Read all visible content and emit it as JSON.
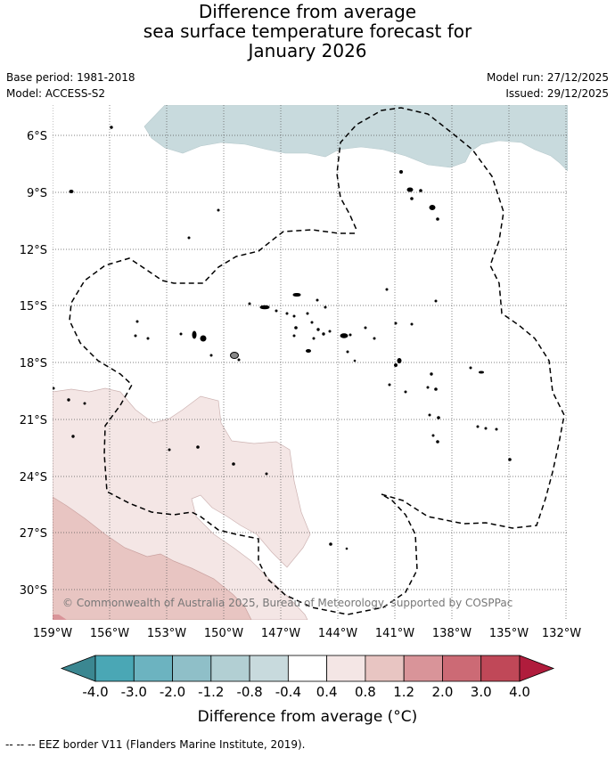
{
  "title": {
    "line1": "Difference from average",
    "line2": "sea surface temperature forecast for",
    "line3": "January 2026"
  },
  "meta": {
    "base_period": "Base period: 1981-2018",
    "model": "Model: ACCESS-S2",
    "model_run": "Model run: 27/12/2025",
    "issued": "Issued: 29/12/2025"
  },
  "map": {
    "lat_labels": [
      "6°S",
      "9°S",
      "12°S",
      "15°S",
      "18°S",
      "21°S",
      "24°S",
      "27°S",
      "30°S"
    ],
    "lon_labels": [
      "159°W",
      "156°W",
      "153°W",
      "150°W",
      "147°W",
      "144°W",
      "141°W",
      "138°W",
      "135°W",
      "132°W"
    ],
    "copyright": "© Commonwealth of Australia 2025, Bureau of Meteorology, supported by COSPPac"
  },
  "colorbar": {
    "ticks": [
      "-4.0",
      "-3.0",
      "-2.0",
      "-1.2",
      "-0.8",
      "-0.4",
      "0.4",
      "0.8",
      "1.2",
      "2.0",
      "3.0",
      "4.0"
    ],
    "colors": [
      "#3b8791",
      "#4aa7b5",
      "#6cb3c0",
      "#8fbfc8",
      "#b2cfd3",
      "#c8dadd",
      "#ffffff",
      "#f4e6e5",
      "#e8c5c2",
      "#d99499",
      "#cc6a75",
      "#c04858",
      "#b01c3c"
    ],
    "label": "Difference from average (°C)"
  },
  "legend": {
    "eez": "--  --  -- EEZ border V11 (Flanders Marine Institute, 2019)."
  }
}
